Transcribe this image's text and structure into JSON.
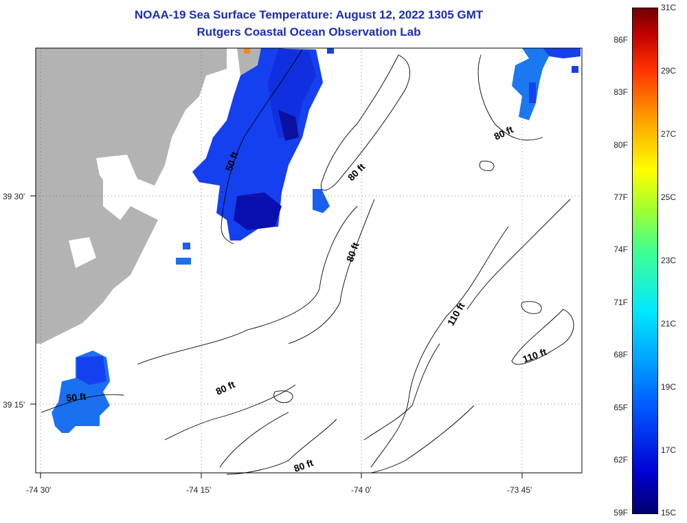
{
  "title_line1": "NOAA-19 Sea Surface Temperature:  August 12, 2022 1305 GMT",
  "title_line2": "Rutgers Coastal Ocean Observation Lab",
  "axes": {
    "lon_labels": [
      "-74 30'",
      "-74 15'",
      "-74 0'",
      "-73 45'"
    ],
    "lat_labels": [
      "39 30'",
      "39 15'"
    ]
  },
  "depth_labels": [
    "50 ft",
    "80 ft",
    "80 ft",
    "80 ft",
    "110 ft",
    "110 ft",
    "50 ft",
    "80 ft",
    "80 ft"
  ],
  "colorbar": {
    "fahrenheit": [
      "86F",
      "83F",
      "80F",
      "77F",
      "74F",
      "71F",
      "68F",
      "65F",
      "62F",
      "59F"
    ],
    "celsius": [
      "31C",
      "29C",
      "27C",
      "25C",
      "23C",
      "21C",
      "19C",
      "17C",
      "15C"
    ]
  },
  "colors": {
    "land": "#b3b3b3",
    "title": "#1a2bb8",
    "sst_deep": "#0a10c8",
    "sst_mid": "#1540f0",
    "sst_light": "#1a78f0",
    "sst_warm_pixel": "#f08a10"
  }
}
